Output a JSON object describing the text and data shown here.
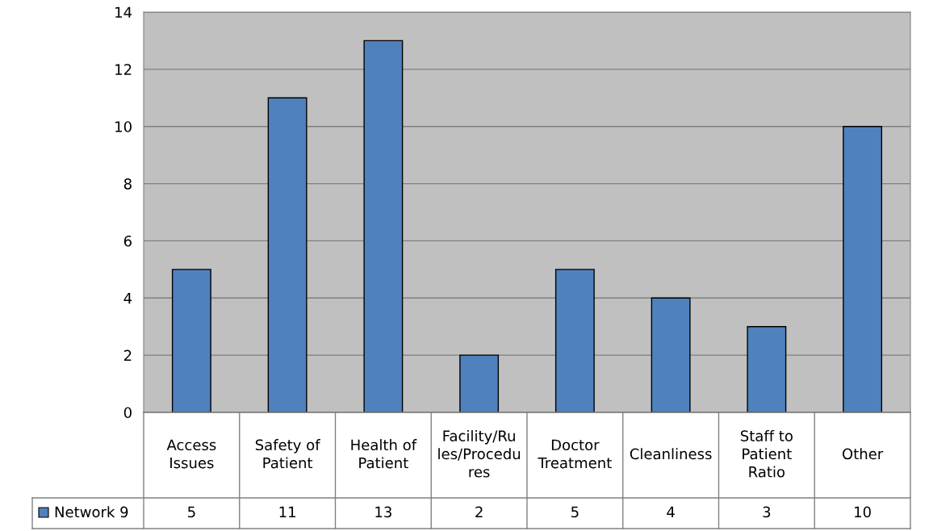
{
  "chart_data": {
    "type": "bar",
    "categories": [
      "Access Issues",
      "Safety of Patient",
      "Health of Patient",
      "Facility/Rules/Procedures",
      "Doctor Treatment",
      "Cleanliness",
      "Staff to Patient Ratio",
      "Other"
    ],
    "series": [
      {
        "name": "Network 9",
        "color": "#4f81bd",
        "values": [
          5,
          11,
          13,
          2,
          5,
          4,
          3,
          10
        ]
      }
    ],
    "ylim": [
      0,
      14
    ],
    "yticks": [
      0,
      2,
      4,
      6,
      8,
      10,
      12,
      14
    ],
    "grid": "y",
    "legend": "bottom left",
    "data_labels": true
  }
}
